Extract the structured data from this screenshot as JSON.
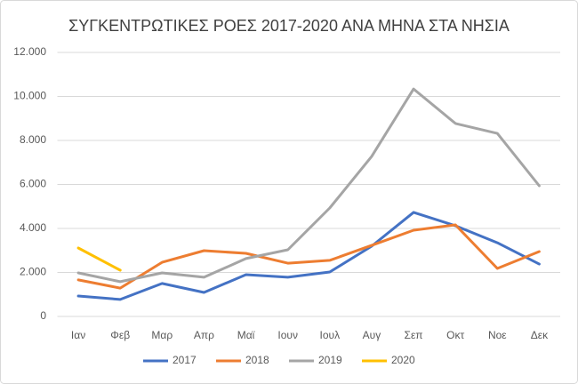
{
  "chart_data": {
    "type": "line",
    "title": "ΣΥΓΚΕΝΤΡΩΤΙΚΕΣ ΡΟΕΣ 2017-2020 ΑΝΑ ΜΗΝΑ ΣΤΑ ΝΗΣΙΑ",
    "categories": [
      "Ιαν",
      "Φεβ",
      "Μαρ",
      "Απρ",
      "Μαϊ",
      "Ιουν",
      "Ιουλ",
      "Αυγ",
      "Σεπ",
      "Οκτ",
      "Νοε",
      "Δεκ"
    ],
    "series": [
      {
        "name": "2017",
        "color": "#4472c4",
        "values": [
          930,
          770,
          1500,
          1090,
          1900,
          1780,
          2020,
          3190,
          4730,
          4120,
          3350,
          2380
        ]
      },
      {
        "name": "2018",
        "color": "#ed7d31",
        "values": [
          1660,
          1290,
          2460,
          2990,
          2870,
          2420,
          2550,
          3230,
          3920,
          4160,
          2180,
          2950
        ]
      },
      {
        "name": "2019",
        "color": "#a5a5a5",
        "values": [
          1980,
          1580,
          1980,
          1780,
          2630,
          3030,
          4930,
          7270,
          10340,
          8770,
          8320,
          5940
        ]
      },
      {
        "name": "2020",
        "color": "#ffc000",
        "values": [
          3110,
          2100,
          null,
          null,
          null,
          null,
          null,
          null,
          null,
          null,
          null,
          null
        ]
      }
    ],
    "ylim": [
      0,
      12000
    ],
    "yticks": [
      0,
      {
        "value": 2000,
        "label": "2.000"
      },
      {
        "value": 4000,
        "label": "4.000"
      },
      {
        "value": 6000,
        "label": "6.000"
      },
      {
        "value": 8000,
        "label": "8.000"
      },
      {
        "value": 10000,
        "label": "10.000"
      },
      {
        "value": 12000,
        "label": "12.000"
      }
    ],
    "grid": true,
    "legend": "bottom"
  }
}
